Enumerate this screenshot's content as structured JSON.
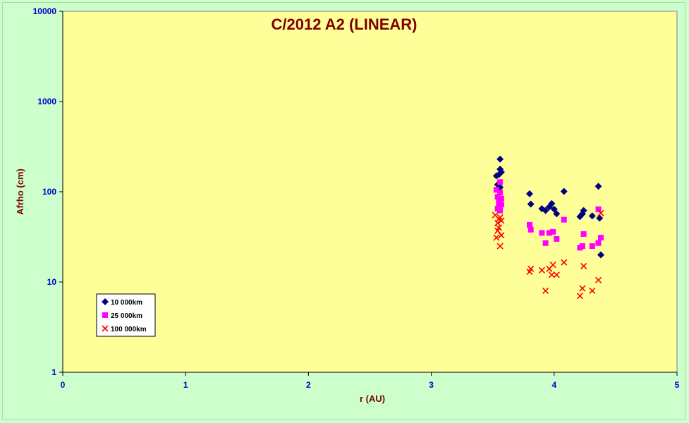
{
  "chart_data": {
    "type": "scatter",
    "title": "C/2012 A2 (LINEAR)",
    "xlabel": "r (AU)",
    "ylabel": "Afrho (cm)",
    "xlim": [
      0,
      5
    ],
    "ylim": [
      1,
      10000
    ],
    "yscale": "log",
    "x_ticks": [
      "0",
      "1",
      "2",
      "3",
      "4",
      "5"
    ],
    "y_ticks": [
      "1",
      "10",
      "100",
      "1000",
      "10000"
    ],
    "grid": false,
    "legend_position": "bottom-left",
    "plot_background": "#ffff99",
    "series": [
      {
        "name": "10 000km",
        "marker": "diamond",
        "color": "#000080",
        "points": [
          [
            3.53,
            150
          ],
          [
            3.54,
            120
          ],
          [
            3.55,
            155
          ],
          [
            3.56,
            230
          ],
          [
            3.56,
            178
          ],
          [
            3.57,
            165
          ],
          [
            3.56,
            112
          ],
          [
            3.8,
            95
          ],
          [
            3.81,
            73
          ],
          [
            3.9,
            65
          ],
          [
            3.93,
            62
          ],
          [
            3.96,
            68
          ],
          [
            3.98,
            74
          ],
          [
            4.0,
            64
          ],
          [
            4.02,
            57
          ],
          [
            4.08,
            101
          ],
          [
            4.21,
            53
          ],
          [
            4.23,
            57
          ],
          [
            4.24,
            62
          ],
          [
            4.31,
            54
          ],
          [
            4.36,
            115
          ],
          [
            4.37,
            51
          ],
          [
            4.38,
            20
          ]
        ]
      },
      {
        "name": "25 000km",
        "marker": "square",
        "color": "#ff00ff",
        "points": [
          [
            3.53,
            105
          ],
          [
            3.54,
            88
          ],
          [
            3.55,
            78
          ],
          [
            3.56,
            128
          ],
          [
            3.56,
            98
          ],
          [
            3.57,
            84
          ],
          [
            3.55,
            70
          ],
          [
            3.56,
            62
          ],
          [
            3.54,
            65
          ],
          [
            3.57,
            72
          ],
          [
            3.8,
            43
          ],
          [
            3.81,
            38
          ],
          [
            3.9,
            35
          ],
          [
            3.93,
            27
          ],
          [
            3.96,
            35
          ],
          [
            3.99,
            36
          ],
          [
            4.02,
            30
          ],
          [
            4.08,
            49
          ],
          [
            4.21,
            24
          ],
          [
            4.23,
            25
          ],
          [
            4.24,
            34
          ],
          [
            4.31,
            25
          ],
          [
            4.36,
            27
          ],
          [
            4.36,
            64
          ],
          [
            4.38,
            31
          ]
        ]
      },
      {
        "name": "100 000km",
        "marker": "x",
        "color": "#ff0000",
        "points": [
          [
            3.53,
            31
          ],
          [
            3.54,
            37
          ],
          [
            3.55,
            50
          ],
          [
            3.56,
            52
          ],
          [
            3.56,
            25
          ],
          [
            3.57,
            33
          ],
          [
            3.54,
            45
          ],
          [
            3.55,
            40
          ],
          [
            3.52,
            55
          ],
          [
            3.57,
            48
          ],
          [
            3.8,
            13
          ],
          [
            3.81,
            14
          ],
          [
            3.9,
            13.5
          ],
          [
            3.93,
            8
          ],
          [
            3.96,
            14
          ],
          [
            3.98,
            12
          ],
          [
            3.99,
            15.5
          ],
          [
            4.02,
            12
          ],
          [
            4.08,
            16.5
          ],
          [
            4.21,
            7
          ],
          [
            4.23,
            8.5
          ],
          [
            4.24,
            15
          ],
          [
            4.31,
            8
          ],
          [
            4.36,
            10.5
          ],
          [
            4.38,
            58
          ]
        ]
      }
    ]
  }
}
